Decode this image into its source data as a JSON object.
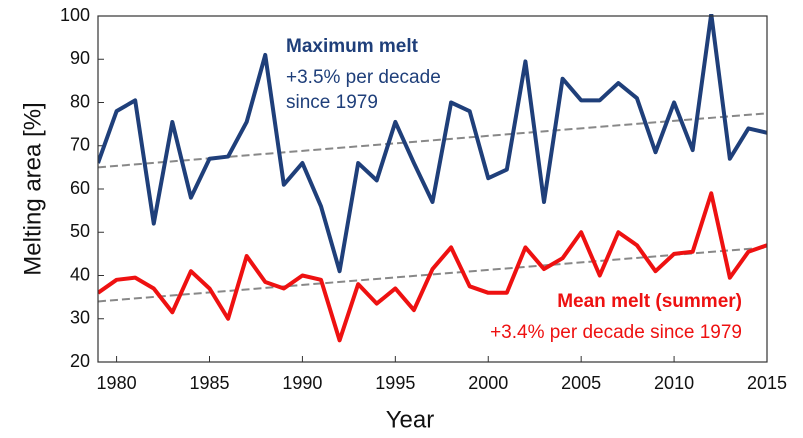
{
  "chart_data": {
    "type": "line",
    "x_label": "Year",
    "y_label": "Melting area [%]",
    "x": [
      1979,
      1980,
      1981,
      1982,
      1983,
      1984,
      1985,
      1986,
      1987,
      1988,
      1989,
      1990,
      1991,
      1992,
      1993,
      1994,
      1995,
      1996,
      1997,
      1998,
      1999,
      2000,
      2001,
      2002,
      2003,
      2004,
      2005,
      2006,
      2007,
      2008,
      2009,
      2010,
      2011,
      2012,
      2013,
      2014,
      2015
    ],
    "series": [
      {
        "name": "Maximum melt",
        "color": "#1f3f7a",
        "values": [
          66,
          78,
          80.5,
          52,
          75.5,
          58,
          67,
          67.5,
          75.5,
          91,
          61,
          66,
          56,
          41,
          66,
          62,
          75.5,
          66,
          57,
          80,
          78,
          62.5,
          64.5,
          89.5,
          57,
          85.5,
          80.5,
          80.5,
          84.5,
          81,
          68.5,
          80,
          69,
          100.5,
          67,
          74,
          73
        ],
        "trend": [
          65,
          77.5
        ]
      },
      {
        "name": "Mean melt (summer)",
        "color": "#ee1111",
        "values": [
          36,
          39,
          39.5,
          37,
          31.5,
          41,
          37,
          30,
          44.5,
          38.5,
          37,
          40,
          39,
          25,
          38,
          33.5,
          37,
          32,
          41.5,
          46.5,
          37.5,
          36,
          36,
          46.5,
          41.5,
          44,
          50,
          40,
          50,
          47,
          41,
          45,
          45.5,
          59,
          39.5,
          45.5,
          47
        ],
        "trend": [
          34,
          46.5
        ]
      }
    ],
    "trend_x": [
      1979,
      2015
    ],
    "trend_color": "#888888",
    "annotations": [
      {
        "text": "Maximum melt",
        "color": "#1f3f7a",
        "bold": true
      },
      {
        "text": "+3.5% per decade",
        "color": "#1f3f7a",
        "bold": false
      },
      {
        "text": "since 1979",
        "color": "#1f3f7a",
        "bold": false
      },
      {
        "text": "Mean melt (summer)",
        "color": "#ee1111",
        "bold": true
      },
      {
        "text": "+3.4% per decade since 1979",
        "color": "#ee1111",
        "bold": false
      }
    ],
    "xlim": [
      1979,
      2015
    ],
    "xticks": [
      1980,
      1985,
      1990,
      1995,
      2000,
      2005,
      2010,
      2015
    ],
    "ylim": [
      20,
      100
    ],
    "yticks": [
      20,
      30,
      40,
      50,
      60,
      70,
      80,
      90,
      100
    ],
    "grid": false
  }
}
